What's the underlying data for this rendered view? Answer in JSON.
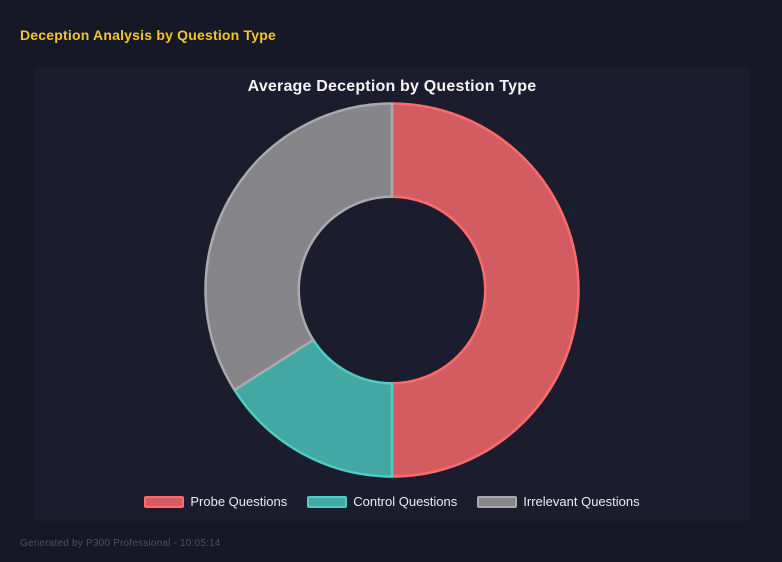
{
  "page": {
    "title": "Deception Analysis by Question Type",
    "footer": "Generated by P300 Professional - 10:05:14"
  },
  "colors": {
    "background": "#161925",
    "panel": "#1b1d2e",
    "title": "#f0c530",
    "chart_title": "#f2f4f7",
    "legend_text": "#e9ebef",
    "footer_text": "#4a5160"
  },
  "chart_data": {
    "type": "pie",
    "variant": "donut",
    "title": "Average Deception by Question Type",
    "categories": [
      "Probe Questions",
      "Control Questions",
      "Irrelevant Questions"
    ],
    "values": [
      50,
      16,
      34
    ],
    "segments": [
      {
        "label": "Probe Questions",
        "value": 50,
        "fill": "#d25c62",
        "border": "#ff6b6b"
      },
      {
        "label": "Control Questions",
        "value": 16,
        "fill": "#43a8a3",
        "border": "#4ecdc4"
      },
      {
        "label": "Irrelevant Questions",
        "value": 34,
        "fill": "#85858a",
        "border": "#a9a9af"
      }
    ],
    "start_angle_deg": 0,
    "direction": "clockwise",
    "inner_radius_ratio": 0.5,
    "legend_position": "bottom",
    "grid": false
  }
}
